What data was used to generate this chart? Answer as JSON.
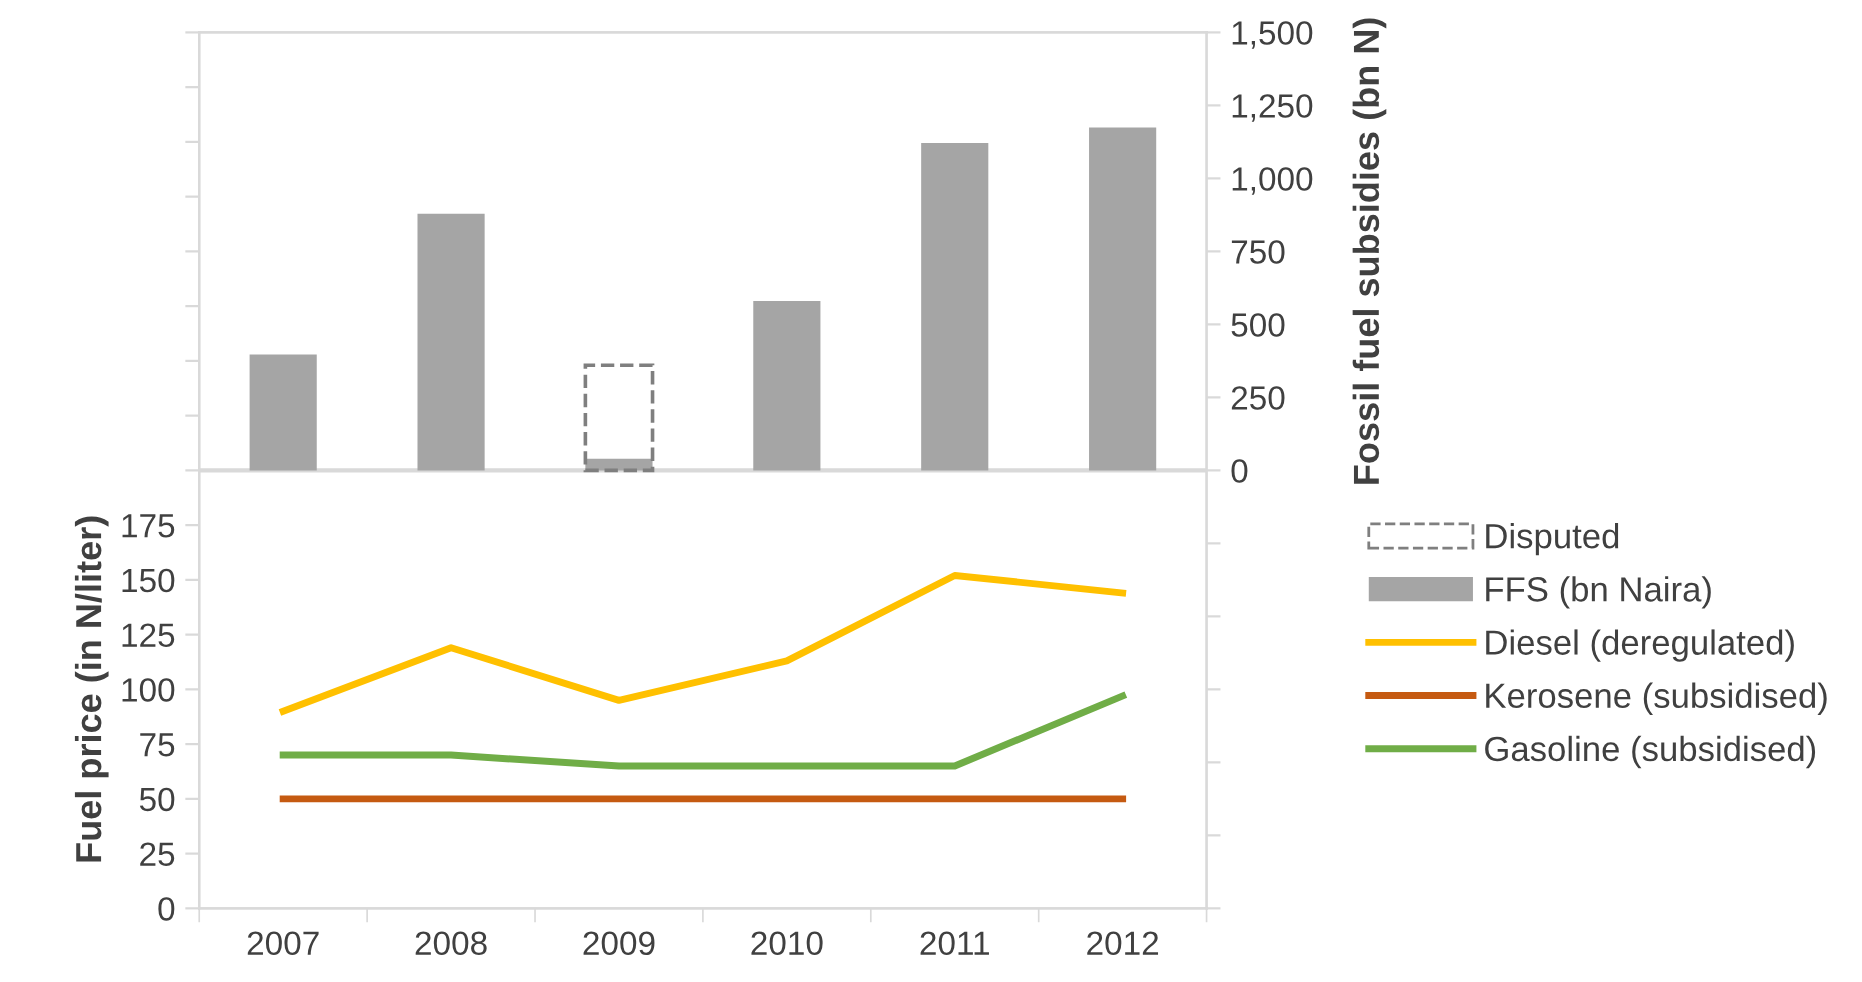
{
  "chart_data": {
    "type": "line",
    "categories": [
      "2007",
      "2008",
      "2009",
      "2010",
      "2011",
      "2012"
    ],
    "ylabel": "Fuel price (in N/liter)",
    "y2label": "Fossil fuel subsidies (bn N)",
    "series": [
      {
        "name": "Disputed",
        "type": "bar",
        "axis": "y2",
        "color": "#7f7f7f",
        "line_style": "dashed",
        "values": [
          null,
          null,
          360,
          null,
          null,
          null
        ]
      },
      {
        "name": "FFS (bn Naira)",
        "type": "bar",
        "axis": "y2",
        "color": "#a5a5a5",
        "values": [
          397,
          879,
          40,
          580,
          1121,
          1174
        ]
      },
      {
        "name": "Diesel (deregulated)",
        "color": "#ffc000",
        "values": [
          90,
          119,
          95,
          113,
          152,
          144
        ]
      },
      {
        "name": "Kerosene (subsidised)",
        "color": "#c55a11",
        "values": [
          50,
          50,
          50,
          50,
          50,
          50
        ]
      },
      {
        "name": "Gasoline (subsidised)",
        "color": "#70ad47",
        "values": [
          70,
          70,
          65,
          65,
          65,
          97
        ]
      }
    ],
    "ylim": [
      0,
      400
    ],
    "yticks": [
      0,
      25,
      50,
      75,
      100,
      125,
      150,
      175,
      {
        "value": 200,
        "label": null
      },
      {
        "value": 225,
        "label": null
      },
      {
        "value": 250,
        "label": null
      },
      {
        "value": 275,
        "label": null
      },
      {
        "value": 300,
        "label": null
      },
      {
        "value": 325,
        "label": null
      },
      {
        "value": 350,
        "label": null
      },
      {
        "value": 375,
        "label": null
      },
      {
        "value": 400,
        "label": null
      }
    ],
    "y2lim": [
      -1500,
      1500
    ],
    "y2ticks": [
      {
        "value": -1500,
        "label": null
      },
      {
        "value": -1250,
        "label": null
      },
      {
        "value": -1000,
        "label": null
      },
      {
        "value": -750,
        "label": null
      },
      {
        "value": -500,
        "label": null
      },
      {
        "value": -250,
        "label": null
      },
      0,
      250,
      500,
      750,
      {
        "value": 1000,
        "label": "1,000"
      },
      {
        "value": 1250,
        "label": "1,250"
      },
      {
        "value": 1500,
        "label": "1,500"
      }
    ],
    "ref_lines": [
      {
        "axis": "y2",
        "value": 0,
        "color": "#d9d9d9"
      }
    ],
    "grid": false,
    "legend": "right",
    "marker": "none",
    "line_style": "solid"
  }
}
